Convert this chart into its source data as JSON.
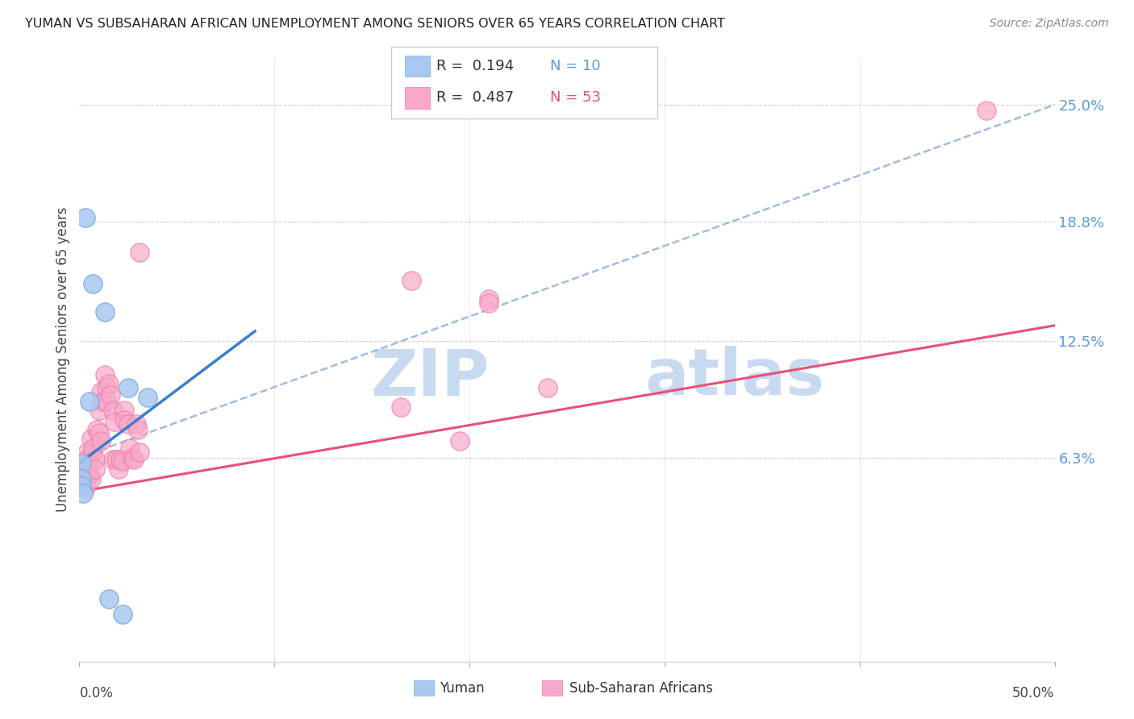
{
  "title": "YUMAN VS SUBSAHARAN AFRICAN UNEMPLOYMENT AMONG SENIORS OVER 65 YEARS CORRELATION CHART",
  "source": "Source: ZipAtlas.com",
  "ylabel": "Unemployment Among Seniors over 65 years",
  "yaxis_labels": [
    "6.3%",
    "12.5%",
    "18.8%",
    "25.0%"
  ],
  "yaxis_values": [
    0.063,
    0.125,
    0.188,
    0.25
  ],
  "xlim": [
    0.0,
    0.5
  ],
  "ylim": [
    -0.045,
    0.275
  ],
  "yuman_color": "#a8c8f0",
  "yuman_edge_color": "#7aacdf",
  "subsaharan_color": "#f9a8c9",
  "subsaharan_edge_color": "#f07aaa",
  "yuman_line_color": "#3a7fcb",
  "subsaharan_line_color": "#e8507a",
  "trendline_dashed_color": "#a0bce0",
  "background_color": "#ffffff",
  "yuman_points": [
    [
      0.003,
      0.19
    ],
    [
      0.007,
      0.155
    ],
    [
      0.013,
      0.14
    ],
    [
      0.005,
      0.093
    ],
    [
      0.001,
      0.06
    ],
    [
      0.001,
      0.052
    ],
    [
      0.001,
      0.048
    ],
    [
      0.002,
      0.044
    ],
    [
      0.025,
      0.1
    ],
    [
      0.035,
      0.095
    ],
    [
      0.015,
      -0.012
    ],
    [
      0.022,
      -0.02
    ]
  ],
  "subsaharan_points": [
    [
      0.001,
      0.06
    ],
    [
      0.001,
      0.055
    ],
    [
      0.001,
      0.052
    ],
    [
      0.001,
      0.058
    ],
    [
      0.002,
      0.056
    ],
    [
      0.002,
      0.06
    ],
    [
      0.002,
      0.053
    ],
    [
      0.003,
      0.05
    ],
    [
      0.003,
      0.047
    ],
    [
      0.004,
      0.066
    ],
    [
      0.004,
      0.062
    ],
    [
      0.005,
      0.059
    ],
    [
      0.005,
      0.054
    ],
    [
      0.006,
      0.052
    ],
    [
      0.006,
      0.073
    ],
    [
      0.007,
      0.066
    ],
    [
      0.007,
      0.068
    ],
    [
      0.008,
      0.062
    ],
    [
      0.008,
      0.057
    ],
    [
      0.009,
      0.078
    ],
    [
      0.01,
      0.088
    ],
    [
      0.01,
      0.076
    ],
    [
      0.011,
      0.072
    ],
    [
      0.011,
      0.098
    ],
    [
      0.012,
      0.093
    ],
    [
      0.013,
      0.107
    ],
    [
      0.014,
      0.1
    ],
    [
      0.014,
      0.093
    ],
    [
      0.015,
      0.102
    ],
    [
      0.016,
      0.096
    ],
    [
      0.017,
      0.088
    ],
    [
      0.017,
      0.062
    ],
    [
      0.018,
      0.082
    ],
    [
      0.019,
      0.062
    ],
    [
      0.02,
      0.057
    ],
    [
      0.021,
      0.062
    ],
    [
      0.022,
      0.061
    ],
    [
      0.023,
      0.088
    ],
    [
      0.023,
      0.083
    ],
    [
      0.025,
      0.081
    ],
    [
      0.026,
      0.068
    ],
    [
      0.027,
      0.063
    ],
    [
      0.028,
      0.062
    ],
    [
      0.029,
      0.081
    ],
    [
      0.03,
      0.078
    ],
    [
      0.031,
      0.066
    ],
    [
      0.031,
      0.172
    ],
    [
      0.17,
      0.157
    ],
    [
      0.21,
      0.147
    ],
    [
      0.24,
      0.1
    ],
    [
      0.165,
      0.09
    ],
    [
      0.195,
      0.072
    ],
    [
      0.465,
      0.247
    ],
    [
      0.21,
      0.145
    ]
  ],
  "yuman_trendline": [
    [
      0.0,
      0.06
    ],
    [
      0.09,
      0.13
    ]
  ],
  "subsaharan_trendline": [
    [
      0.0,
      0.045
    ],
    [
      0.5,
      0.133
    ]
  ],
  "dashed_trendline": [
    [
      0.0,
      0.063
    ],
    [
      0.5,
      0.25
    ]
  ]
}
